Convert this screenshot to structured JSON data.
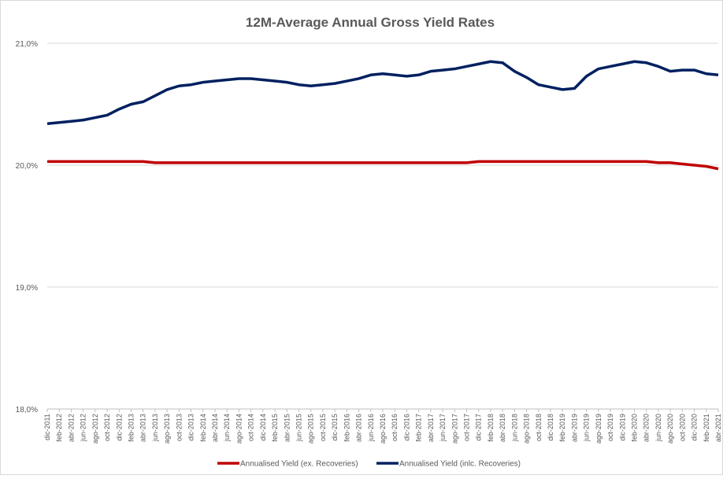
{
  "chart_data": {
    "type": "line",
    "title": "12M-Average Annual Gross Yield Rates",
    "categories": [
      "dic-2011",
      "feb-2012",
      "abr-2012",
      "jun-2012",
      "ago-2012",
      "oct-2012",
      "dic-2012",
      "feb-2013",
      "abr-2013",
      "jun-2013",
      "ago-2013",
      "oct-2013",
      "dic-2013",
      "feb-2014",
      "abr-2014",
      "jun-2014",
      "ago-2014",
      "oct-2014",
      "dic-2014",
      "feb-2015",
      "abr-2015",
      "jun-2015",
      "ago-2015",
      "oct-2015",
      "dic-2015",
      "feb-2016",
      "abr-2016",
      "jun-2016",
      "ago-2016",
      "oct-2016",
      "dic-2016",
      "feb-2017",
      "abr-2017",
      "jun-2017",
      "ago-2017",
      "oct-2017",
      "dic-2017",
      "feb-2018",
      "abr-2018",
      "jun-2018",
      "ago-2018",
      "oct-2018",
      "dic-2018",
      "feb-2019",
      "abr-2019",
      "jun-2019",
      "ago-2019",
      "oct-2019",
      "dic-2019",
      "feb-2020",
      "abr-2020",
      "jun-2020",
      "ago-2020",
      "oct-2020",
      "dic-2020",
      "feb-2021",
      "abr-2021"
    ],
    "series": [
      {
        "name": "Annualised Yield (ex. Recoveries)",
        "color": "#c00000",
        "values": [
          20.03,
          20.03,
          20.03,
          20.03,
          20.03,
          20.03,
          20.03,
          20.03,
          20.03,
          20.02,
          20.02,
          20.02,
          20.02,
          20.02,
          20.02,
          20.02,
          20.02,
          20.02,
          20.02,
          20.02,
          20.02,
          20.02,
          20.02,
          20.02,
          20.02,
          20.02,
          20.02,
          20.02,
          20.02,
          20.02,
          20.02,
          20.02,
          20.02,
          20.02,
          20.02,
          20.02,
          20.03,
          20.03,
          20.03,
          20.03,
          20.03,
          20.03,
          20.03,
          20.03,
          20.03,
          20.03,
          20.03,
          20.03,
          20.03,
          20.03,
          20.03,
          20.02,
          20.02,
          20.01,
          20.0,
          19.99,
          19.97
        ]
      },
      {
        "name": "Annualised Yield (inlc. Recoveries)",
        "color": "#002060",
        "values": [
          20.34,
          20.35,
          20.36,
          20.37,
          20.39,
          20.41,
          20.46,
          20.5,
          20.52,
          20.57,
          20.62,
          20.65,
          20.66,
          20.68,
          20.69,
          20.7,
          20.71,
          20.71,
          20.7,
          20.69,
          20.68,
          20.66,
          20.65,
          20.66,
          20.67,
          20.69,
          20.71,
          20.74,
          20.75,
          20.74,
          20.73,
          20.74,
          20.77,
          20.78,
          20.79,
          20.81,
          20.83,
          20.85,
          20.84,
          20.77,
          20.72,
          20.66,
          20.64,
          20.62,
          20.63,
          20.73,
          20.79,
          20.81,
          20.83,
          20.85,
          20.84,
          20.81,
          20.77,
          20.78,
          20.78,
          20.75,
          20.74
        ]
      }
    ],
    "ylim": [
      18,
      21
    ],
    "yticks": [
      {
        "value": 18,
        "label": "18,0%"
      },
      {
        "value": 19,
        "label": "19,0%"
      },
      {
        "value": 20,
        "label": "20,0%"
      },
      {
        "value": 21,
        "label": "21,0%"
      }
    ],
    "grid": true,
    "legend": "bottom"
  }
}
